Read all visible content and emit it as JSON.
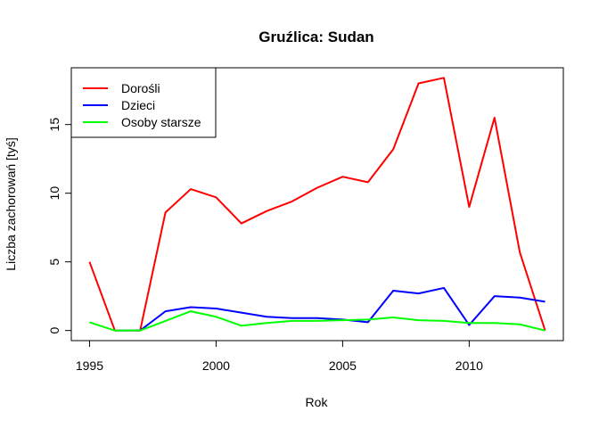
{
  "chart_data": {
    "type": "line",
    "title": "Gruźlica: Sudan",
    "xlabel": "Rok",
    "ylabel": "Liczba zachorowań [tyś]",
    "x": [
      1995,
      1996,
      1997,
      1998,
      1999,
      2000,
      2001,
      2002,
      2003,
      2004,
      2005,
      2006,
      2007,
      2008,
      2009,
      2010,
      2011,
      2012,
      2013
    ],
    "series": [
      {
        "name": "Dorośli",
        "color": "#ff0000",
        "values": [
          5.0,
          0.0,
          0.0,
          8.6,
          10.3,
          9.7,
          7.8,
          8.7,
          9.4,
          10.4,
          11.2,
          10.8,
          13.2,
          18.0,
          18.4,
          9.0,
          15.5,
          5.7,
          0.0
        ]
      },
      {
        "name": "Dzieci",
        "color": "#0000ff",
        "values": [
          null,
          0.0,
          0.0,
          1.4,
          1.7,
          1.6,
          1.3,
          1.0,
          0.9,
          0.9,
          0.8,
          0.6,
          2.9,
          2.7,
          3.1,
          0.4,
          2.5,
          2.4,
          2.1
        ]
      },
      {
        "name": "Osoby starsze",
        "color": "#00ff00",
        "values": [
          0.6,
          0.0,
          0.0,
          0.7,
          1.4,
          1.0,
          0.35,
          0.55,
          0.7,
          0.7,
          0.75,
          0.8,
          0.95,
          0.75,
          0.7,
          0.55,
          0.55,
          0.45,
          0.0
        ]
      }
    ],
    "xlim": [
      1994.28,
      2013.72
    ],
    "ylim": [
      -0.736,
      19.136
    ],
    "xticks": [
      1995,
      2000,
      2005,
      2010
    ],
    "yticks": [
      0,
      5,
      10,
      15
    ],
    "legend_position": "top-left",
    "grid": false
  }
}
